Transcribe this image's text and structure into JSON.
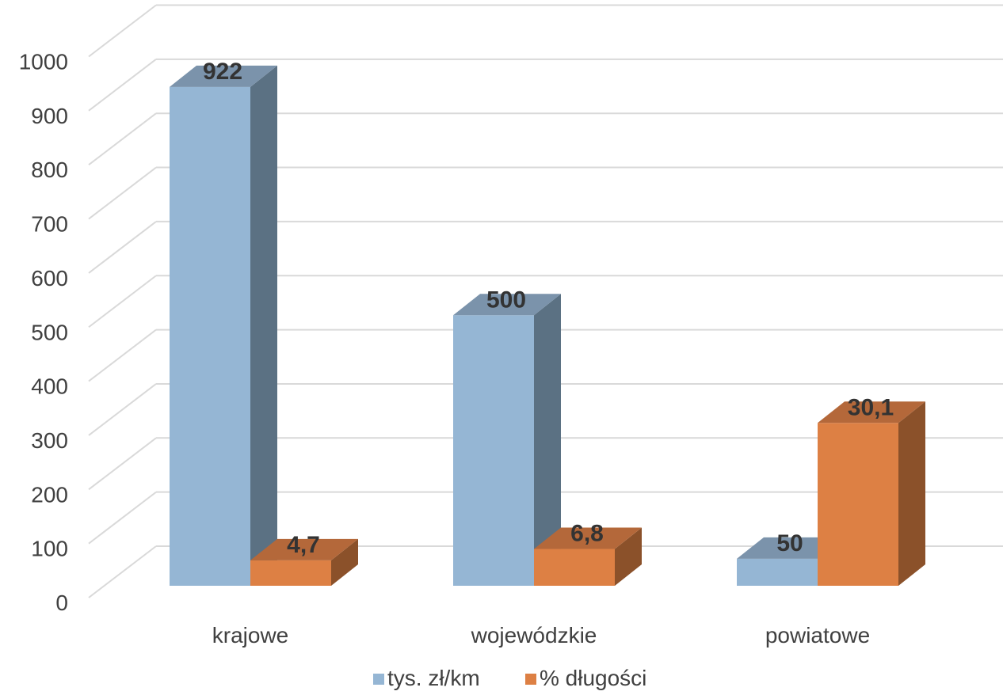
{
  "chart_data": {
    "type": "bar",
    "three_d": true,
    "categories": [
      "krajowe",
      "wojewódzkie",
      "powiatowe"
    ],
    "series": [
      {
        "name": "tys. zł/km",
        "values": [
          922,
          500,
          50
        ],
        "labels": [
          "922",
          "500",
          "50"
        ],
        "color": "#95b6d4",
        "side_color": "#5b7183",
        "top_color": "#7b93ab"
      },
      {
        "name": "% długości",
        "values": [
          4.7,
          6.8,
          30.1
        ],
        "labels": [
          "4,7",
          "6,8",
          "30,1"
        ],
        "color": "#dd8044",
        "side_color": "#8b512a",
        "top_color": "#b4683a"
      }
    ],
    "secondary_scale_factor": 10,
    "y_ticks": [
      "0",
      "100",
      "200",
      "300",
      "400",
      "500",
      "600",
      "700",
      "800",
      "900",
      "1000"
    ],
    "ylim": [
      0,
      1000
    ],
    "grid": true,
    "legend_position": "bottom"
  }
}
